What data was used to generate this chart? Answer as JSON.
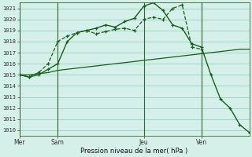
{
  "xlabel": "Pression niveau de la mer( hPa )",
  "bg_color": "#d4f0e8",
  "grid_color": "#88ccbb",
  "line_color": "#1a5c1a",
  "ylim": [
    1009.5,
    1021.5
  ],
  "yticks": [
    1010,
    1011,
    1012,
    1013,
    1014,
    1015,
    1016,
    1017,
    1018,
    1019,
    1020,
    1021
  ],
  "day_labels": [
    "Mer",
    "Sam",
    "Jeu",
    "Ven"
  ],
  "day_positions": [
    0,
    4,
    13,
    19
  ],
  "xlim": [
    0,
    24
  ],
  "vline_positions": [
    0,
    4,
    13,
    19
  ],
  "series1_x": [
    0,
    1,
    2,
    3,
    4,
    5,
    6,
    7,
    8,
    9,
    10,
    11,
    12,
    13,
    14,
    15,
    16,
    17,
    18,
    19
  ],
  "series1_y": [
    1015.0,
    1014.8,
    1015.2,
    1016.0,
    1018.0,
    1018.5,
    1018.8,
    1019.0,
    1018.7,
    1018.9,
    1019.1,
    1019.2,
    1019.0,
    1020.0,
    1020.2,
    1020.0,
    1021.0,
    1021.3,
    1017.5,
    1017.3
  ],
  "series2_x": [
    0,
    1,
    2,
    3,
    4,
    5,
    6,
    7,
    8,
    9,
    10,
    11,
    12,
    13,
    14,
    15,
    16,
    17,
    18,
    19,
    20,
    21,
    22,
    23,
    24
  ],
  "series2_y": [
    1015.0,
    1015.0,
    1015.1,
    1015.2,
    1015.4,
    1015.5,
    1015.6,
    1015.7,
    1015.8,
    1015.9,
    1016.0,
    1016.1,
    1016.2,
    1016.3,
    1016.4,
    1016.5,
    1016.6,
    1016.7,
    1016.8,
    1016.9,
    1017.0,
    1017.1,
    1017.2,
    1017.3,
    1017.3
  ],
  "series3_x": [
    0,
    1,
    2,
    3,
    4,
    5,
    6,
    7,
    8,
    9,
    10,
    11,
    12,
    13,
    14,
    15,
    16,
    17,
    18,
    19,
    20,
    21,
    22,
    23,
    24
  ],
  "series3_y": [
    1015.0,
    1014.8,
    1015.0,
    1015.5,
    1016.0,
    1018.0,
    1018.8,
    1019.0,
    1019.2,
    1019.5,
    1019.3,
    1019.8,
    1020.1,
    1021.2,
    1021.5,
    1020.8,
    1019.5,
    1019.2,
    1017.8,
    1017.5,
    1015.0,
    1012.8,
    1012.0,
    1010.5,
    1009.8
  ]
}
